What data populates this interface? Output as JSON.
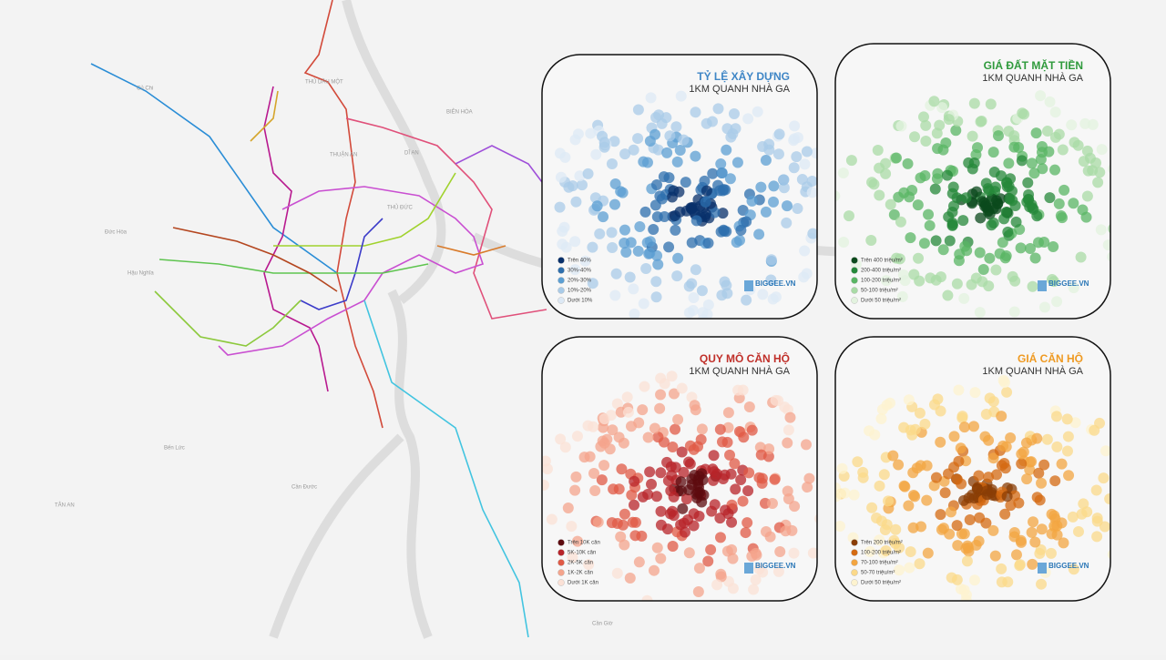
{
  "map_labels": [
    "THỦ DẦU MỘT",
    "BIÊN HÒA",
    "THUẬN AN",
    "DĨ AN",
    "THỦ ĐỨC",
    "TÂN AN",
    "Củ Chi",
    "Cần Giờ",
    "Đức Hòa",
    "Hậu Nghĩa",
    "Bến Lức",
    "Cần Đước"
  ],
  "panels": [
    {
      "title": "TỶ LỆ XÂY DỰNG",
      "subtitle": "1KM QUANH NHÀ GA",
      "title_color": "#3f86c6",
      "brand": "BIGGEE.VN",
      "legend": [
        {
          "label": "Trên 40%",
          "color": "#08306b"
        },
        {
          "label": "30%-40%",
          "color": "#2e6fad"
        },
        {
          "label": "20%-30%",
          "color": "#5c9fd3"
        },
        {
          "label": "10%-20%",
          "color": "#a9cbe8"
        },
        {
          "label": "Dưới 10%",
          "color": "#dde9f5"
        }
      ]
    },
    {
      "title": "GIÁ  ĐẤT MẶT TIỀN",
      "subtitle": "1KM QUANH NHÀ GA",
      "title_color": "#2f9a3c",
      "brand": "BIGGEE.VN",
      "legend": [
        {
          "label": "Trên 400 triệu/m²",
          "color": "#0b4a1c"
        },
        {
          "label": "200-400 triệu/m²",
          "color": "#25883a"
        },
        {
          "label": "100-200 triệu/m²",
          "color": "#59b564"
        },
        {
          "label": "50-100 triệu/m²",
          "color": "#a9dba6"
        },
        {
          "label": "Dưới 50 triệu/m²",
          "color": "#e3f3df"
        }
      ]
    },
    {
      "title": "QUY MÔ CĂN HỘ",
      "subtitle": "1KM QUANH NHÀ GA",
      "title_color": "#c0302a",
      "brand": "BIGGEE.VN",
      "legend": [
        {
          "label": "Trên 10K căn",
          "color": "#5e0b0f"
        },
        {
          "label": "5K-10K căn",
          "color": "#b8242a"
        },
        {
          "label": "2K-5K căn",
          "color": "#e05a46"
        },
        {
          "label": "1K-2K căn",
          "color": "#f4a48c"
        },
        {
          "label": "Dưới 1K căn",
          "color": "#fbe1d6"
        }
      ]
    },
    {
      "title": "GIÁ CĂN HỘ",
      "subtitle": "1KM QUANH NHÀ GA",
      "title_color": "#ef9a22",
      "brand": "BIGGEE.VN",
      "legend": [
        {
          "label": "Trên 200 triệu/m²",
          "color": "#8a3d06"
        },
        {
          "label": "100-200 triệu/m²",
          "color": "#d46a12"
        },
        {
          "label": "70-100 triệu/m²",
          "color": "#f3a541"
        },
        {
          "label": "50-70 triệu/m²",
          "color": "#fbd98a"
        },
        {
          "label": "Dưới 50 triệu/m²",
          "color": "#fdf3cf"
        }
      ]
    }
  ]
}
